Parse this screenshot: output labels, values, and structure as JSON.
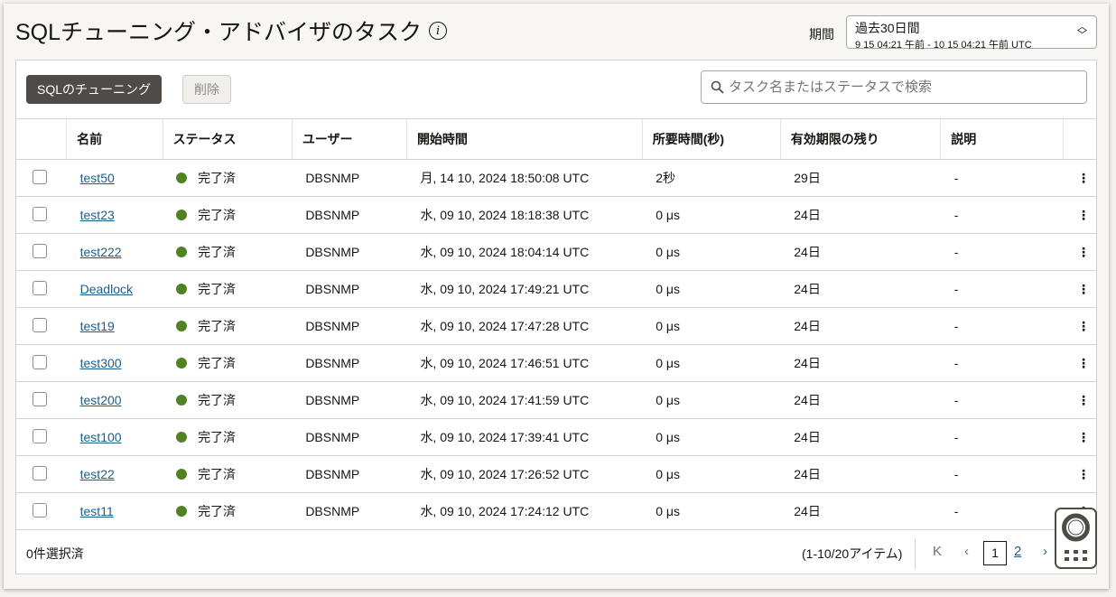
{
  "header": {
    "title": "SQLチューニング・アドバイザのタスク",
    "info_icon": "i",
    "period_label": "期間",
    "period_value": "過去30日間",
    "period_range": "9 15 04:21 午前 - 10 15 04:21 午前 UTC"
  },
  "toolbar": {
    "tune_label": "SQLのチューニング",
    "delete_label": "削除",
    "search_placeholder": "タスク名またはステータスで検索"
  },
  "columns": [
    "名前",
    "ステータス",
    "ユーザー",
    "開始時間",
    "所要時間(秒)",
    "有効期限の残り",
    "説明"
  ],
  "rows": [
    {
      "name": "test50",
      "status": "完了済",
      "user": "DBSNMP",
      "start": "月, 14 10, 2024 18:50:08 UTC",
      "duration": "2秒",
      "remaining": "29日",
      "desc": "-"
    },
    {
      "name": "test23",
      "status": "完了済",
      "user": "DBSNMP",
      "start": "水, 09 10, 2024 18:18:38 UTC",
      "duration": "0 μs",
      "remaining": "24日",
      "desc": "-"
    },
    {
      "name": "test222",
      "status": "完了済",
      "user": "DBSNMP",
      "start": "水, 09 10, 2024 18:04:14 UTC",
      "duration": "0 μs",
      "remaining": "24日",
      "desc": "-"
    },
    {
      "name": "Deadlock",
      "status": "完了済",
      "user": "DBSNMP",
      "start": "水, 09 10, 2024 17:49:21 UTC",
      "duration": "0 μs",
      "remaining": "24日",
      "desc": "-"
    },
    {
      "name": "test19",
      "status": "完了済",
      "user": "DBSNMP",
      "start": "水, 09 10, 2024 17:47:28 UTC",
      "duration": "0 μs",
      "remaining": "24日",
      "desc": "-"
    },
    {
      "name": "test300",
      "status": "完了済",
      "user": "DBSNMP",
      "start": "水, 09 10, 2024 17:46:51 UTC",
      "duration": "0 μs",
      "remaining": "24日",
      "desc": "-"
    },
    {
      "name": "test200",
      "status": "完了済",
      "user": "DBSNMP",
      "start": "水, 09 10, 2024 17:41:59 UTC",
      "duration": "0 μs",
      "remaining": "24日",
      "desc": "-"
    },
    {
      "name": "test100",
      "status": "完了済",
      "user": "DBSNMP",
      "start": "水, 09 10, 2024 17:39:41 UTC",
      "duration": "0 μs",
      "remaining": "24日",
      "desc": "-"
    },
    {
      "name": "test22",
      "status": "完了済",
      "user": "DBSNMP",
      "start": "水, 09 10, 2024 17:26:52 UTC",
      "duration": "0 μs",
      "remaining": "24日",
      "desc": "-"
    },
    {
      "name": "test11",
      "status": "完了済",
      "user": "DBSNMP",
      "start": "水, 09 10, 2024 17:24:12 UTC",
      "duration": "0 μs",
      "remaining": "24日",
      "desc": "-"
    }
  ],
  "footer": {
    "selected": "0件選択済",
    "range": "(1-10/20アイテム)",
    "pages": [
      "1",
      "2"
    ],
    "current_page": "1"
  },
  "colors": {
    "status_complete": "#508223",
    "link": "#1a5f8a",
    "primary_button": "#4f4b47"
  }
}
